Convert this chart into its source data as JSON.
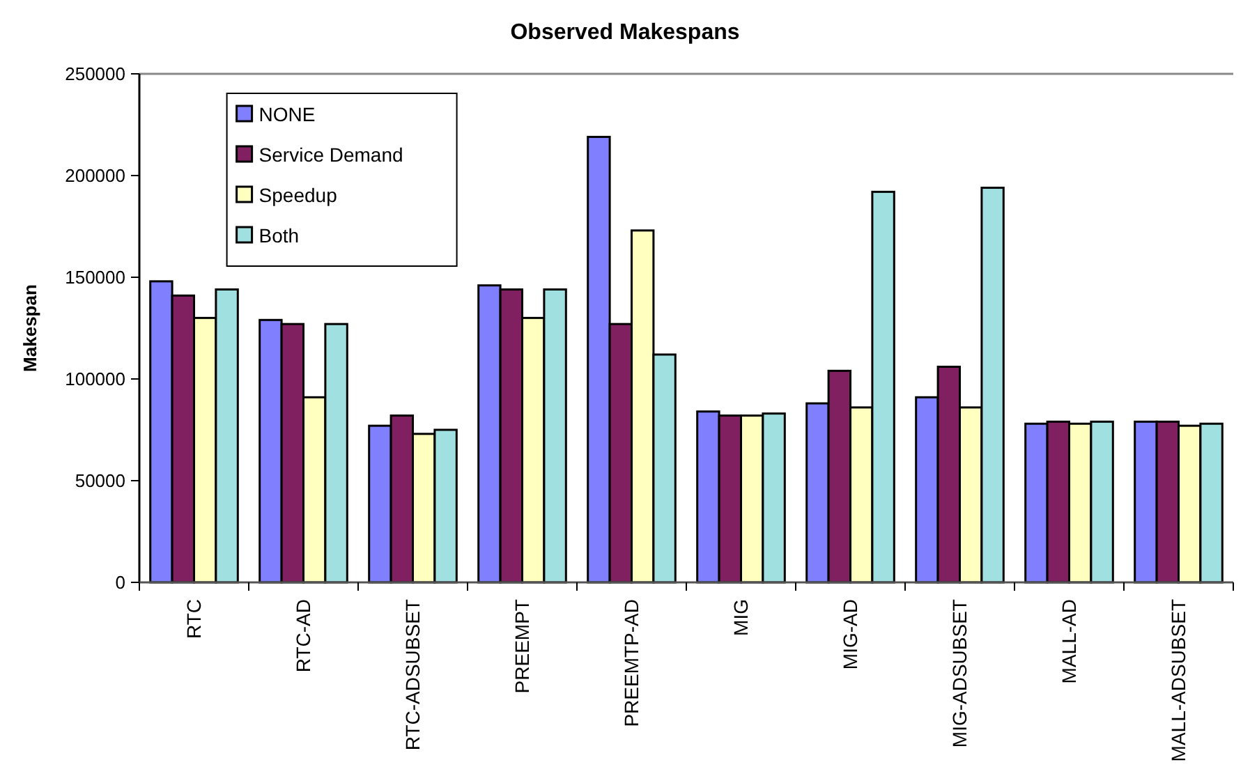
{
  "chart_data": {
    "type": "bar",
    "title": "Observed Makespans",
    "ylabel": "Makespan",
    "categories": [
      "RTC",
      "RTC-AD",
      "RTC-ADSUBSET",
      "PREEMPT",
      "PREEMTP-AD",
      "MIG",
      "MIG-AD",
      "MIG-ADSUBSET",
      "MALL-AD",
      "MALL-ADSUBSET"
    ],
    "series": [
      {
        "name": "NONE",
        "color": "#8080ff",
        "values": [
          148000,
          129000,
          77000,
          146000,
          219000,
          84000,
          88000,
          91000,
          78000,
          79000
        ]
      },
      {
        "name": "Service Demand",
        "color": "#802060",
        "values": [
          141000,
          127000,
          82000,
          144000,
          127000,
          82000,
          104000,
          106000,
          79000,
          79000
        ]
      },
      {
        "name": "Speedup",
        "color": "#ffffc0",
        "values": [
          130000,
          91000,
          73000,
          130000,
          173000,
          82000,
          86000,
          86000,
          78000,
          77000
        ]
      },
      {
        "name": "Both",
        "color": "#a0e0e0",
        "values": [
          144000,
          127000,
          75000,
          144000,
          112000,
          83000,
          192000,
          194000,
          79000,
          78000
        ]
      }
    ],
    "ylim": [
      0,
      250000
    ],
    "yticks": [
      0,
      50000,
      100000,
      150000,
      200000,
      250000
    ],
    "grid": false,
    "legend": "top left"
  }
}
